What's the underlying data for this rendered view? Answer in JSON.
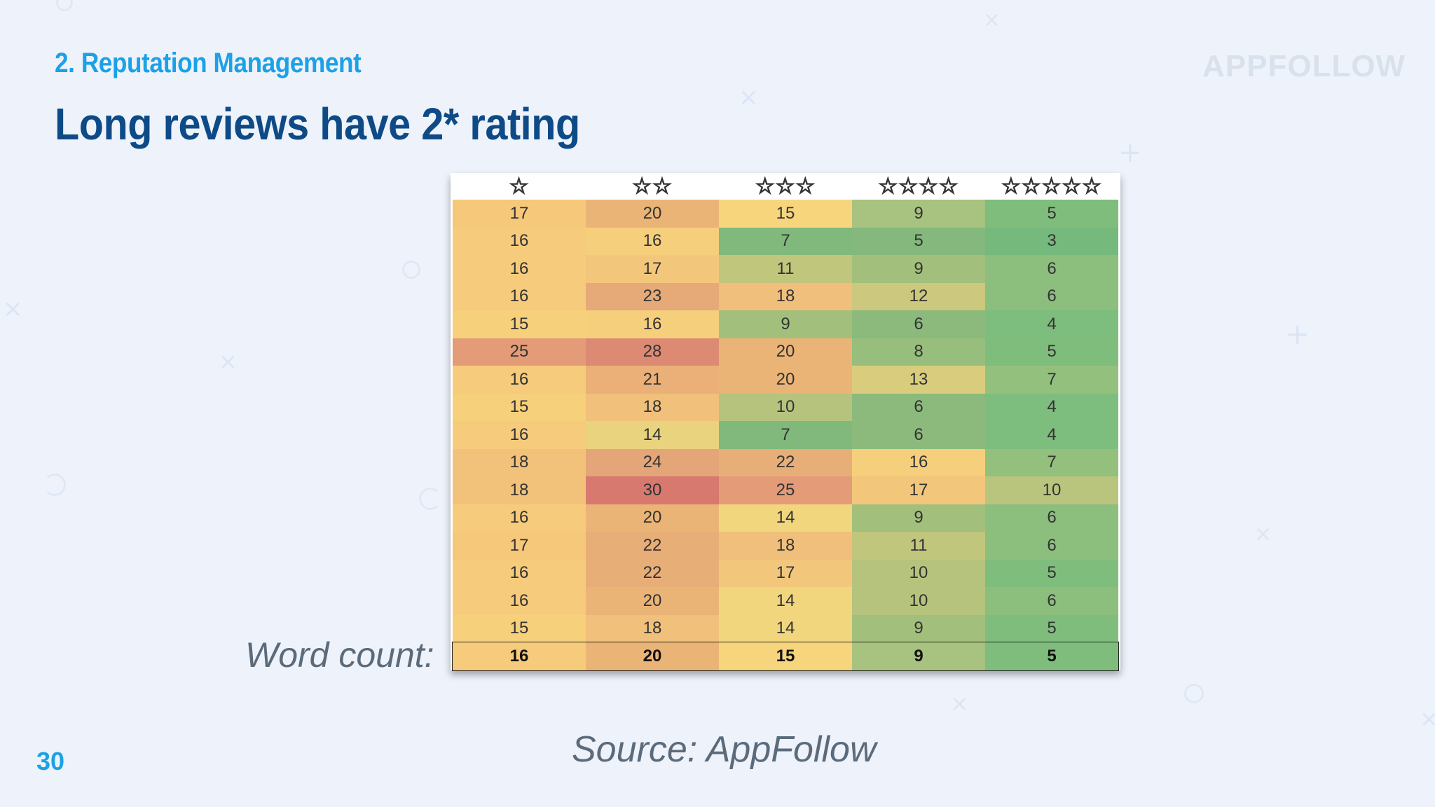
{
  "slide": {
    "section": "2. Reputation Management",
    "title": "Long reviews have 2* rating",
    "brand": "APPFOLLOW",
    "word_count_label": "Word count:",
    "source": "Source: AppFollow",
    "page_number": "30"
  },
  "table": {
    "headers": [
      "☆",
      "☆☆",
      "☆☆☆",
      "☆☆☆☆",
      "☆☆☆☆☆"
    ],
    "header_icons": [
      "star-1-icon",
      "star-2-icon",
      "star-3-icon",
      "star-4-icon",
      "star-5-icon"
    ],
    "rows": [
      {
        "values": [
          "17",
          "20",
          "15",
          "9",
          "5"
        ],
        "colors": [
          "#f5c87a",
          "#ebb477",
          "#f7d57c",
          "#a8c27f",
          "#7fbd7d"
        ]
      },
      {
        "values": [
          "16",
          "16",
          "7",
          "5",
          "3"
        ],
        "colors": [
          "#f6cb7c",
          "#f6cf7c",
          "#80b97b",
          "#84b87c",
          "#76b97c"
        ]
      },
      {
        "values": [
          "16",
          "17",
          "11",
          "9",
          "6"
        ],
        "colors": [
          "#f6cb7c",
          "#f3c77b",
          "#c1c67d",
          "#a2c07c",
          "#8cbe7e"
        ]
      },
      {
        "values": [
          "16",
          "23",
          "18",
          "12",
          "6"
        ],
        "colors": [
          "#f6cb7c",
          "#e6aa79",
          "#f0bf7b",
          "#ccc87d",
          "#8cbe7e"
        ]
      },
      {
        "values": [
          "15",
          "16",
          "9",
          "6",
          "4"
        ],
        "colors": [
          "#f7d07c",
          "#f6cf7c",
          "#a2c07c",
          "#8bba7c",
          "#7dbd7d"
        ]
      },
      {
        "values": [
          "25",
          "28",
          "20",
          "8",
          "5"
        ],
        "colors": [
          "#e39b78",
          "#dc8a74",
          "#ebb477",
          "#98be7d",
          "#7fbd7d"
        ]
      },
      {
        "values": [
          "16",
          "21",
          "20",
          "13",
          "7"
        ],
        "colors": [
          "#f6cb7c",
          "#eab078",
          "#ebb477",
          "#d9cd7d",
          "#94c07e"
        ]
      },
      {
        "values": [
          "15",
          "18",
          "10",
          "6",
          "4"
        ],
        "colors": [
          "#f7d07c",
          "#f1c07b",
          "#b5c37c",
          "#8bba7c",
          "#7dbd7d"
        ]
      },
      {
        "values": [
          "16",
          "14",
          "7",
          "6",
          "4"
        ],
        "colors": [
          "#f6cb7c",
          "#e9d37e",
          "#80b97b",
          "#8bba7c",
          "#7dbd7d"
        ]
      },
      {
        "values": [
          "18",
          "24",
          "22",
          "16",
          "7"
        ],
        "colors": [
          "#f2c27b",
          "#e4a678",
          "#e8ae78",
          "#f6cf7c",
          "#94c07e"
        ]
      },
      {
        "values": [
          "18",
          "30",
          "25",
          "17",
          "10"
        ],
        "colors": [
          "#f2c27b",
          "#d7796f",
          "#e39b78",
          "#f3c77b",
          "#b9c47d"
        ]
      },
      {
        "values": [
          "16",
          "20",
          "14",
          "9",
          "6"
        ],
        "colors": [
          "#f6cb7c",
          "#ebb477",
          "#f1d67e",
          "#a2c07c",
          "#8cbe7e"
        ]
      },
      {
        "values": [
          "17",
          "22",
          "18",
          "11",
          "6"
        ],
        "colors": [
          "#f5c87a",
          "#e8ae78",
          "#f0bf7b",
          "#c1c67d",
          "#8cbe7e"
        ]
      },
      {
        "values": [
          "16",
          "22",
          "17",
          "10",
          "5"
        ],
        "colors": [
          "#f6cb7c",
          "#e8ae78",
          "#f3c77b",
          "#b5c37c",
          "#7fbd7d"
        ]
      },
      {
        "values": [
          "16",
          "20",
          "14",
          "10",
          "6"
        ],
        "colors": [
          "#f6cb7c",
          "#ebb477",
          "#f1d67e",
          "#b5c37c",
          "#8cbe7e"
        ]
      },
      {
        "values": [
          "15",
          "18",
          "14",
          "9",
          "5"
        ],
        "colors": [
          "#f7d07c",
          "#f1c07b",
          "#f1d67e",
          "#a2c07c",
          "#7fbd7d"
        ]
      }
    ],
    "average": {
      "values": [
        "16",
        "20",
        "15",
        "9",
        "5"
      ],
      "colors": [
        "#f6cb7c",
        "#ebb477",
        "#f7d57c",
        "#a8c27f",
        "#7fbd7d"
      ]
    }
  },
  "colors": {
    "accent": "#1da1e6",
    "title": "#0e4a86",
    "background": "#eef3fb",
    "muted_text": "#5b6b7b",
    "star_fill": "#f0c23a"
  }
}
